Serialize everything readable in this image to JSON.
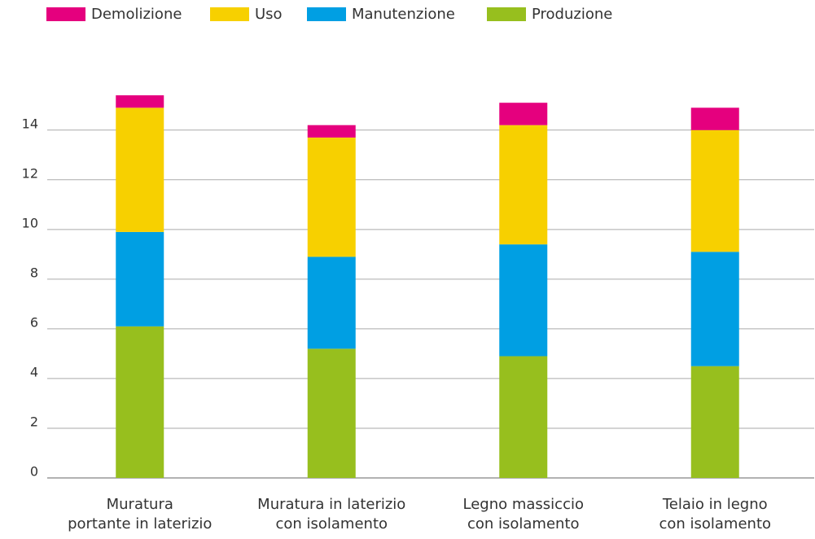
{
  "chart_data": {
    "type": "stacked_bar",
    "categories": [
      [
        "Muratura",
        "portante in laterizio"
      ],
      [
        "Muratura in laterizio",
        "con isolamento"
      ],
      [
        "Legno massiccio",
        "con isolamento"
      ],
      [
        "Telaio in legno",
        "con isolamento"
      ]
    ],
    "series": [
      {
        "name": "Demolizione",
        "color": "#e5007e",
        "values": [
          0.5,
          0.5,
          0.9,
          0.9
        ]
      },
      {
        "name": "Uso",
        "color": "#f7d000",
        "values": [
          5.0,
          4.8,
          4.8,
          4.9
        ]
      },
      {
        "name": "Manutenzione",
        "color": "#009fe3",
        "values": [
          3.8,
          3.7,
          4.5,
          4.6
        ]
      },
      {
        "name": "Produzione",
        "color": "#97bf1e",
        "values": [
          6.1,
          5.2,
          4.9,
          4.5
        ]
      }
    ],
    "ylim": [
      0,
      15.5
    ],
    "yticks": [
      0,
      2,
      4,
      6,
      8,
      10,
      12,
      14
    ],
    "grid": true,
    "legend": "top"
  }
}
